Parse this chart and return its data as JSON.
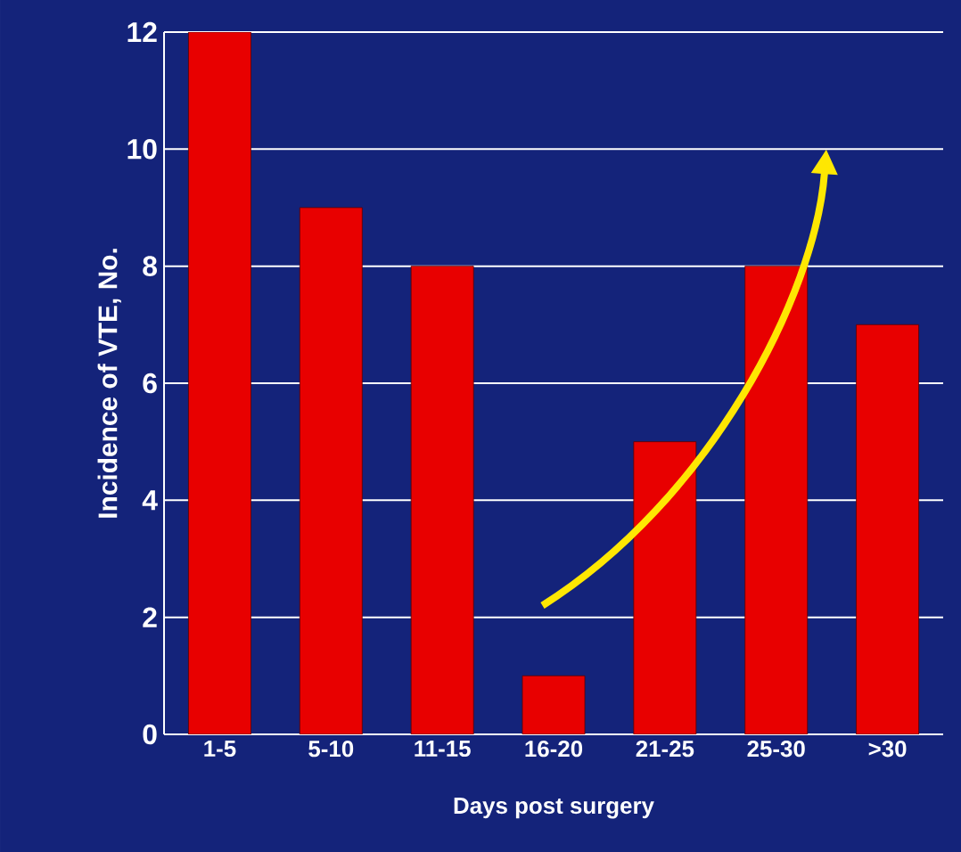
{
  "chart_data": {
    "type": "bar",
    "categories": [
      "1-5",
      "5-10",
      "11-15",
      "16-20",
      "21-25",
      "25-30",
      ">30"
    ],
    "values": [
      12,
      9,
      8,
      1,
      5,
      8,
      7
    ],
    "color": "#e80000",
    "xlabel": "Days post surgery",
    "ylabel": "Incidence of VTE, No.",
    "ylim": [
      0,
      12
    ],
    "yticks": [
      0,
      2,
      4,
      6,
      8,
      10,
      12
    ],
    "grid": "y"
  }
}
